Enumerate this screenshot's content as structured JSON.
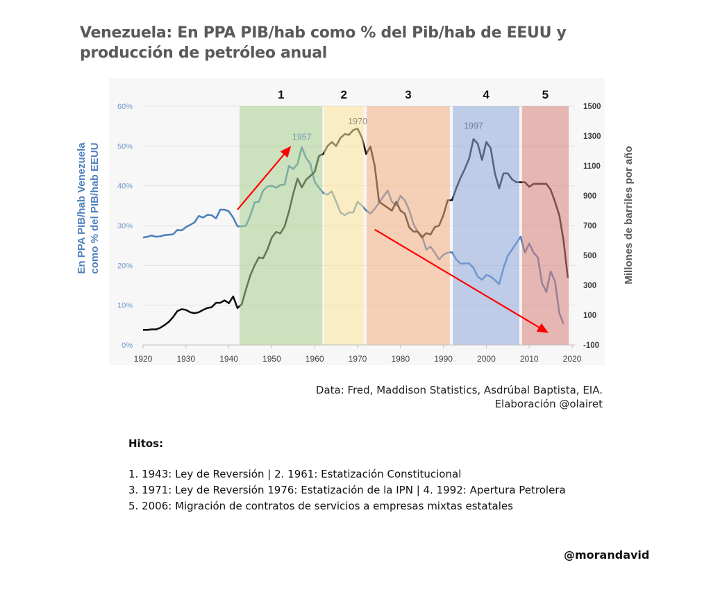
{
  "title": "Venezuela: En PPA PIB/hab como % del Pib/hab de EEUU y producción de petróleo anual",
  "chart_data": {
    "type": "line",
    "title": "Venezuela: En PPA PIB/hab como % del Pib/hab de EEUU y producción de petróleo anual",
    "xlim": [
      1920,
      2020
    ],
    "x_ticks": [
      "1920",
      "1930",
      "1940",
      "1950",
      "1960",
      "1970",
      "1980",
      "1990",
      "2000",
      "2010",
      "2020"
    ],
    "ylabel_left": "En PPA PIB/hab Venezuela como % del PIB/hab EEUU",
    "ylabel_right": "Millones de barriles por año",
    "ylim_left": [
      0,
      60
    ],
    "ylim_right": [
      -100,
      1500
    ],
    "y_ticks_left": [
      "0%",
      "10%",
      "20%",
      "30%",
      "40%",
      "50%",
      "60%"
    ],
    "y_ticks_right": [
      "-100",
      "100",
      "300",
      "500",
      "700",
      "900",
      "1100",
      "1300",
      "1500"
    ],
    "grid": true,
    "series": [
      {
        "axis": "left",
        "color": "#4f81bd",
        "start_year": 1920,
        "values": [
          27,
          27.2,
          27.5,
          27.2,
          27.3,
          27.6,
          27.7,
          27.8,
          28.9,
          28.8,
          29.6,
          30.2,
          30.8,
          32.4,
          32,
          32.7,
          32.6,
          31.8,
          34,
          34,
          33.6,
          32,
          29.8,
          29.8,
          30,
          32.5,
          35.8,
          36,
          38.8,
          39.8,
          40,
          39.5,
          40.2,
          40.3,
          45,
          44.2,
          45.5,
          49.7,
          47,
          45.5,
          41,
          39.5,
          38.2,
          37.8,
          38.6,
          36,
          33.3,
          32.6,
          33.3,
          33.3,
          36,
          35,
          33.8,
          33,
          34.2,
          35.7,
          37.3,
          38.8,
          36,
          35,
          37.5,
          36.3,
          34,
          30.5,
          28.5,
          27.5,
          24,
          24.7,
          23.2,
          21.5,
          22.7,
          23.2,
          23.3,
          21.5,
          20.4,
          20.5,
          20.5,
          19.4,
          17.2,
          16.4,
          17.6,
          17.2,
          16.3,
          15.3,
          19.3,
          22.4,
          24,
          25.6,
          27.2,
          23.2,
          25.5,
          23.2,
          22,
          15.5,
          13.3,
          18.5,
          16,
          8,
          5.3
        ]
      },
      {
        "axis": "right",
        "color": "#111111",
        "start_year": 1920,
        "values": [
          1,
          1,
          4,
          4,
          15,
          33,
          55,
          87,
          127,
          140,
          135,
          119,
          113,
          119,
          135,
          148,
          153,
          183,
          183,
          199,
          180,
          225,
          148,
          172,
          273,
          367,
          433,
          487,
          481,
          540,
          620,
          657,
          647,
          695,
          793,
          913,
          1015,
          956,
          1007,
          1033,
          1060,
          1167,
          1180,
          1233,
          1260,
          1233,
          1287,
          1313,
          1308,
          1340,
          1350,
          1290,
          1180,
          1230,
          1100,
          860,
          840,
          820,
          800,
          860,
          800,
          780,
          690,
          660,
          660,
          620,
          650,
          640,
          690,
          700,
          770,
          870,
          870,
          950,
          1020,
          1080,
          1150,
          1280,
          1250,
          1140,
          1260,
          1220,
          1050,
          950,
          1050,
          1050,
          1010,
          990,
          990,
          990,
          960,
          980,
          980,
          980,
          980,
          940,
          860,
          770,
          600,
          350
        ]
      }
    ],
    "periods": [
      {
        "label": "1",
        "from": 1942.5,
        "to": 1961.8,
        "color": "#a9d08e"
      },
      {
        "label": "2",
        "from": 1962.2,
        "to": 1971.4,
        "color": "#ffe699"
      },
      {
        "label": "3",
        "from": 1972.1,
        "to": 1991.5,
        "color": "#f4b183"
      },
      {
        "label": "4",
        "from": 1992.2,
        "to": 2007.7,
        "color": "#8faadc"
      },
      {
        "label": "5",
        "from": 2008.3,
        "to": 2019.2,
        "color": "#d9827a"
      }
    ],
    "annotations": [
      {
        "text": "1957",
        "x": 1957,
        "axis": "left",
        "y": 51.5,
        "color": "#6f9fb5"
      },
      {
        "text": "1970",
        "x": 1970,
        "axis": "right",
        "y": 1380,
        "color": "#8c8c7a"
      },
      {
        "text": "1997",
        "x": 1997,
        "axis": "right",
        "y": 1350,
        "color": "#6c7fa3"
      }
    ],
    "arrows": [
      {
        "from": [
          1942,
          34
        ],
        "to": [
          1954.5,
          50
        ],
        "axis": "left",
        "color": "#ff0000"
      },
      {
        "from": [
          1974,
          29
        ],
        "to": [
          2014.5,
          3
        ],
        "axis": "left",
        "color": "#ff0000"
      }
    ]
  },
  "source": {
    "line1": "Data: Fred, Maddison Statistics, Asdrúbal Baptista, EIA.",
    "line2": "Elaboración @olairet"
  },
  "notes": {
    "heading": "Hitos:",
    "lines": [
      "1. 1943: Ley de Reversión | 2. 1961: Estatización Constitucional",
      "3. 1971: Ley de Reversión 1976: Estatización de la IPN | 4. 1992: Apertura Petrolera",
      "5. 2006: Migración de contratos de servicios a empresas mixtas estatales"
    ]
  },
  "handle": "@morandavid"
}
